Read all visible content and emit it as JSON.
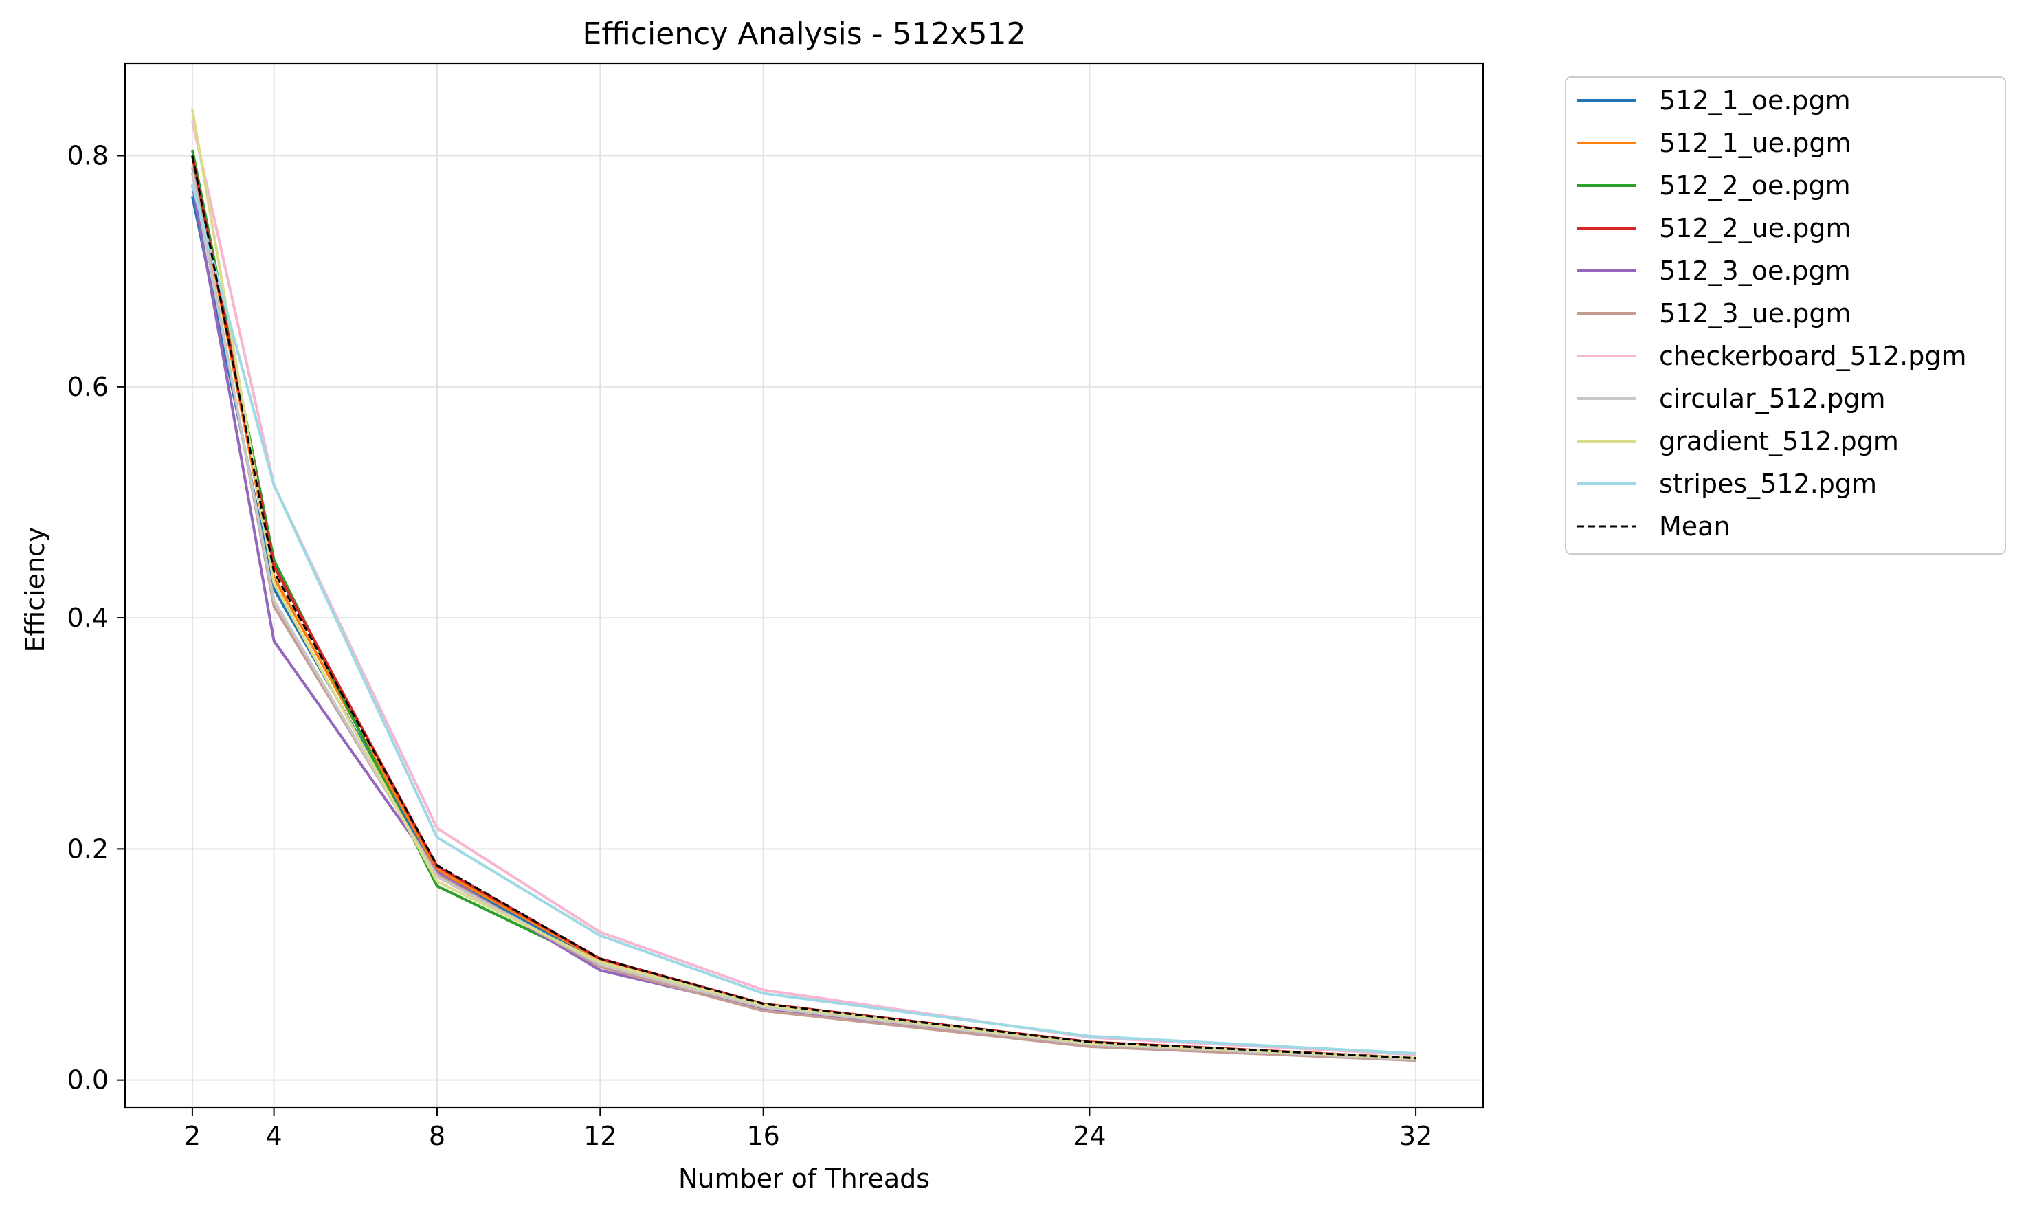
{
  "chart_data": {
    "type": "line",
    "title": "Efficiency Analysis - 512x512",
    "xlabel": "Number of Threads",
    "ylabel": "Efficiency",
    "x": [
      2,
      4,
      8,
      12,
      16,
      24,
      32
    ],
    "xticks": [
      "2",
      "4",
      "8",
      "12",
      "16",
      "24",
      "32"
    ],
    "yticks": [
      "0.0",
      "0.2",
      "0.4",
      "0.6",
      "0.8"
    ],
    "xlim": [
      0.35,
      33.65
    ],
    "ylim": [
      -0.024,
      0.88
    ],
    "grid": true,
    "legend_position": "outside-right-top",
    "series": [
      {
        "name": "512_1_oe.pgm",
        "color": "#1f77b4",
        "dashed": false,
        "values": [
          0.765,
          0.425,
          0.18,
          0.102,
          0.065,
          0.032,
          0.019
        ]
      },
      {
        "name": "512_1_ue.pgm",
        "color": "#ff7f0e",
        "dashed": false,
        "values": [
          0.8,
          0.435,
          0.182,
          0.104,
          0.066,
          0.033,
          0.019
        ]
      },
      {
        "name": "512_2_oe.pgm",
        "color": "#2ca02c",
        "dashed": false,
        "values": [
          0.805,
          0.45,
          0.168,
          0.1,
          0.064,
          0.031,
          0.018
        ]
      },
      {
        "name": "512_2_ue.pgm",
        "color": "#d62728",
        "dashed": false,
        "values": [
          0.8,
          0.445,
          0.185,
          0.105,
          0.066,
          0.033,
          0.019
        ]
      },
      {
        "name": "512_3_oe.pgm",
        "color": "#9467bd",
        "dashed": false,
        "values": [
          0.775,
          0.38,
          0.18,
          0.095,
          0.062,
          0.03,
          0.018
        ]
      },
      {
        "name": "512_3_ue.pgm",
        "color": "#c49c94",
        "dashed": false,
        "values": [
          0.79,
          0.41,
          0.178,
          0.098,
          0.06,
          0.029,
          0.017
        ]
      },
      {
        "name": "checkerboard_512.pgm",
        "color": "#f7b6d2",
        "dashed": false,
        "values": [
          0.83,
          0.515,
          0.218,
          0.128,
          0.078,
          0.037,
          0.022
        ]
      },
      {
        "name": "circular_512.pgm",
        "color": "#c7c7c7",
        "dashed": false,
        "values": [
          0.785,
          0.415,
          0.176,
          0.1,
          0.063,
          0.031,
          0.018
        ]
      },
      {
        "name": "gradient_512.pgm",
        "color": "#dbdb8d",
        "dashed": false,
        "values": [
          0.84,
          0.43,
          0.172,
          0.102,
          0.065,
          0.032,
          0.019
        ]
      },
      {
        "name": "stripes_512.pgm",
        "color": "#9edae5",
        "dashed": false,
        "values": [
          0.775,
          0.515,
          0.21,
          0.125,
          0.075,
          0.038,
          0.023
        ]
      },
      {
        "name": "Mean",
        "color": "#000000",
        "dashed": true,
        "values": [
          0.8,
          0.44,
          0.186,
          0.105,
          0.066,
          0.033,
          0.019
        ]
      }
    ]
  }
}
